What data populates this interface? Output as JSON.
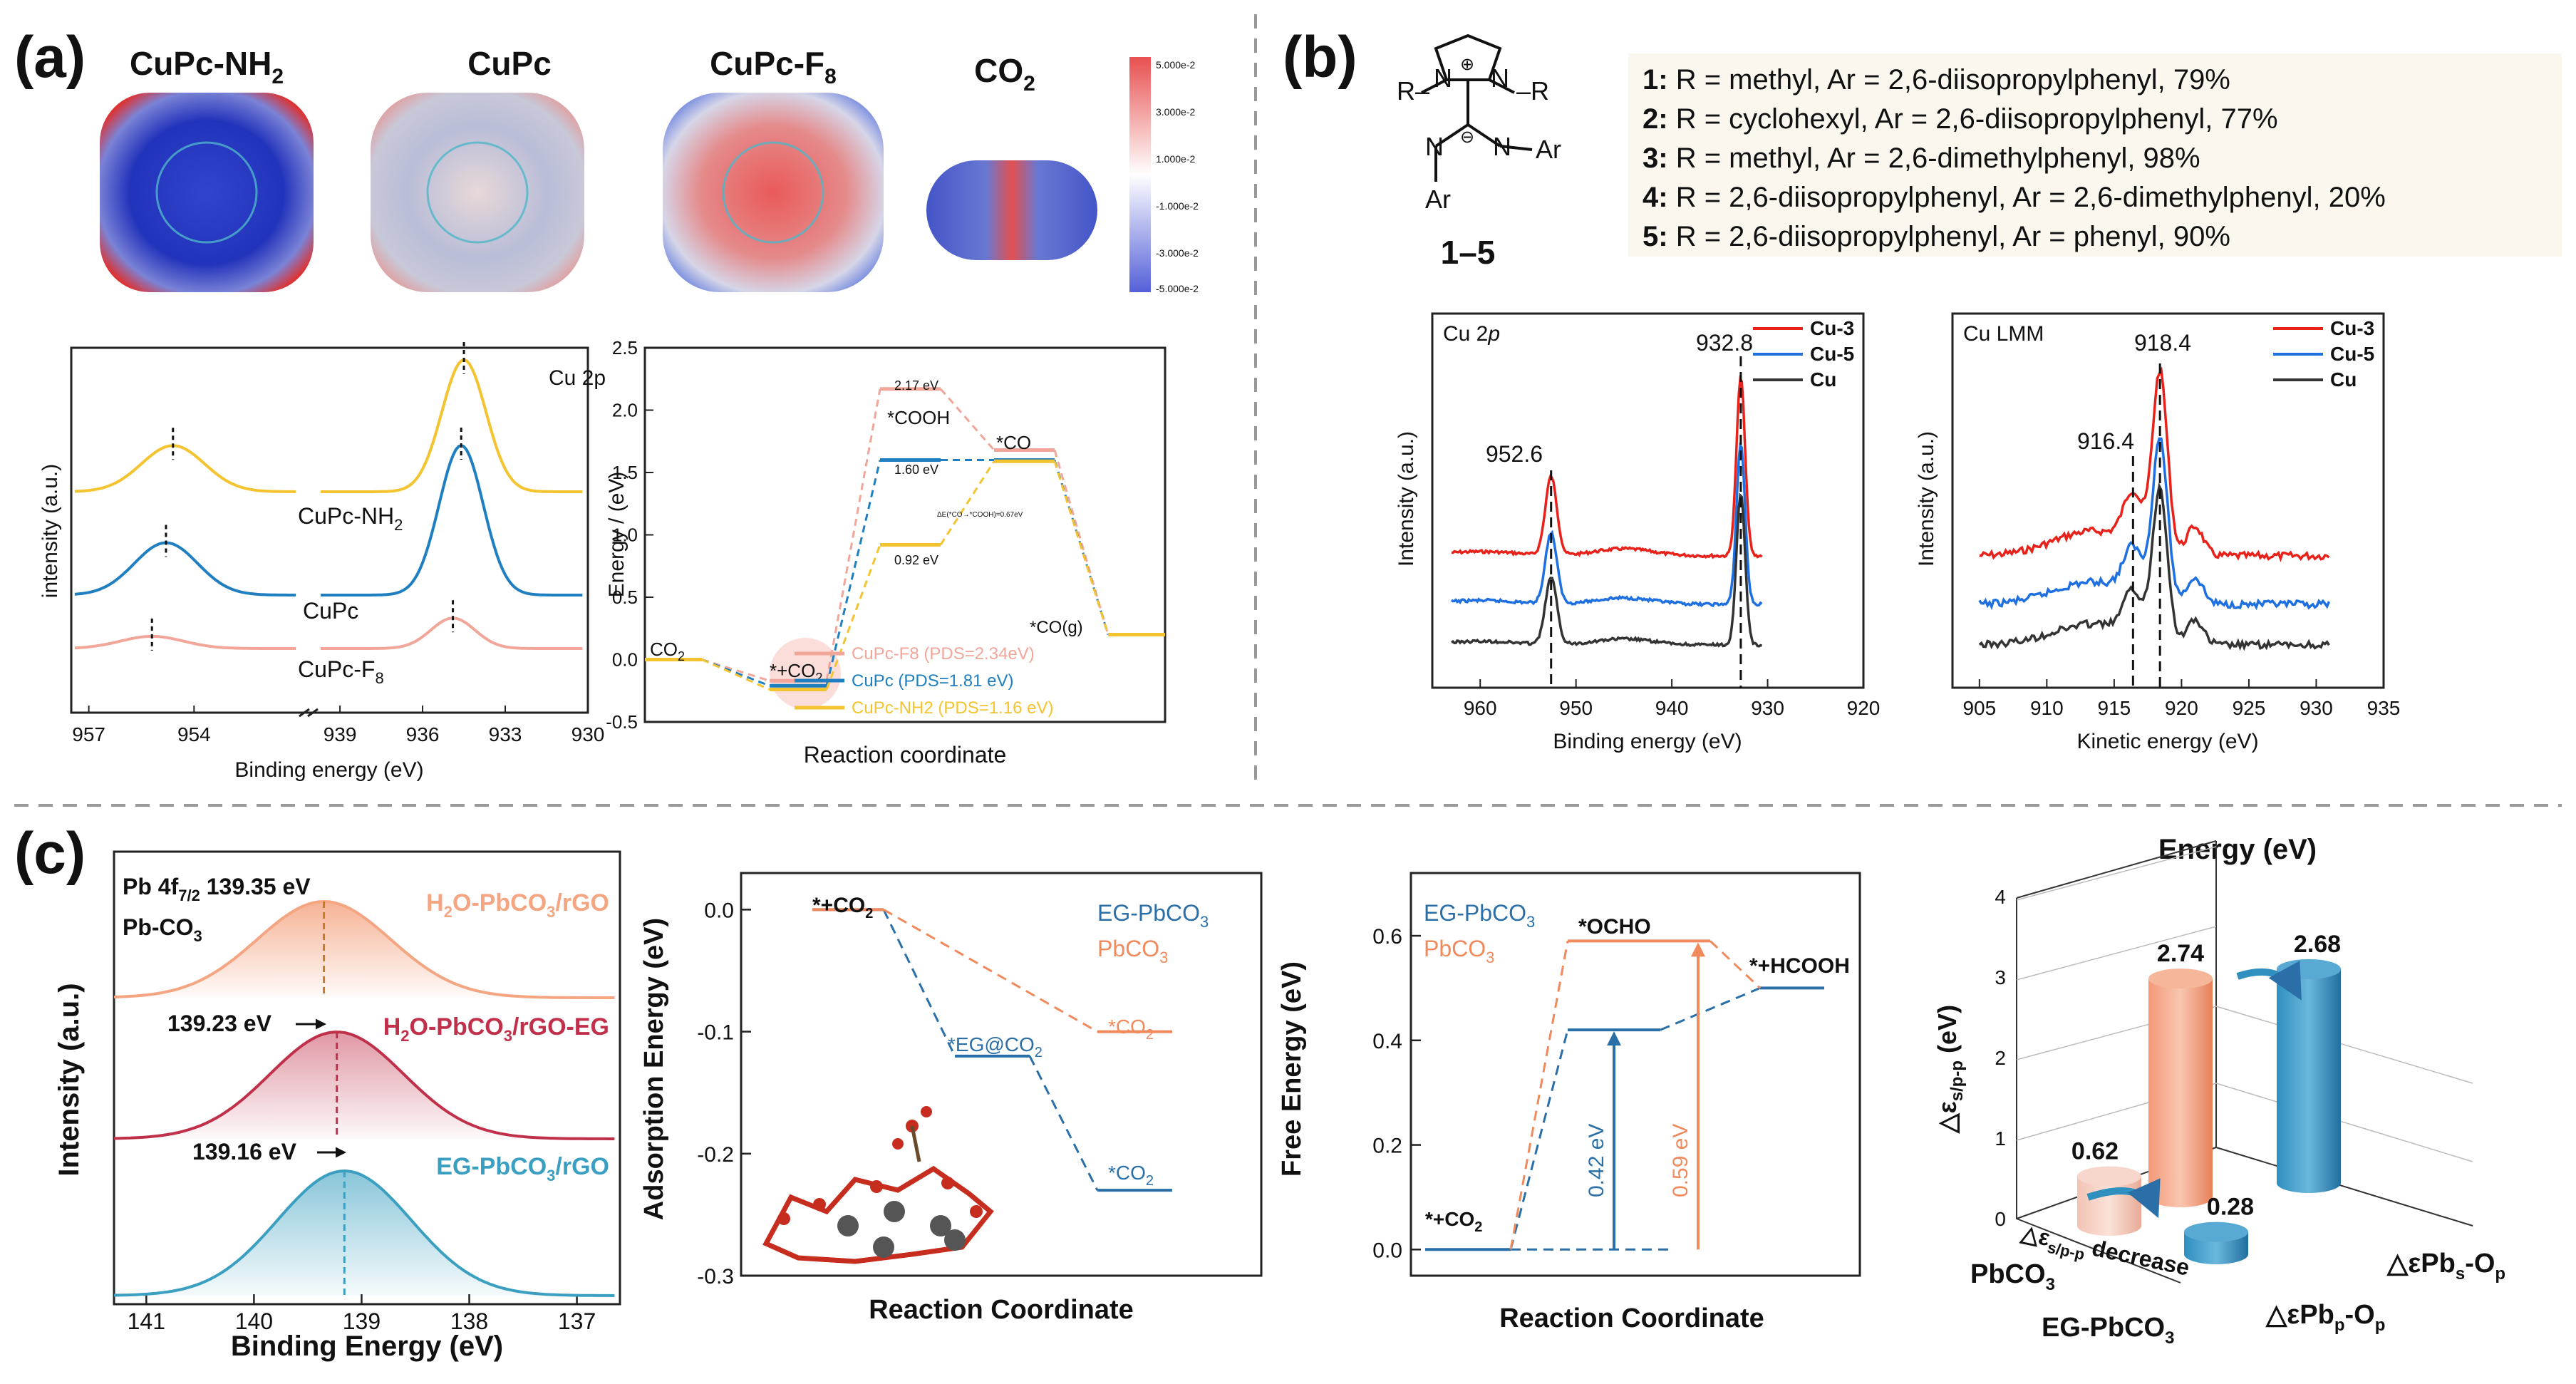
{
  "panels": {
    "a": {
      "label": "(a)",
      "molecules": [
        "CuPc-NH",
        "CuPc",
        "CuPc-F",
        "CO"
      ],
      "molecule_subs": [
        "2",
        "",
        "8",
        "2"
      ],
      "colorbar_ticks": [
        "5.000e-2",
        "3.000e-2",
        "1.000e-2",
        "-1.000e-2",
        "-3.000e-2",
        "-5.000e-2"
      ],
      "colors": {
        "nh2": "#f4c430",
        "cupc": "#1f7fc0",
        "f8": "#f2a69a"
      }
    },
    "b": {
      "label": "(b)",
      "structure_label": "1–5",
      "compounds": [
        {
          "num": "1:",
          "text": " R = methyl, Ar = 2,6-diisopropylphenyl, 79%"
        },
        {
          "num": "2:",
          "text": " R = cyclohexyl, Ar = 2,6-diisopropylphenyl, 77%"
        },
        {
          "num": "3:",
          "text": " R = methyl, Ar = 2,6-dimethylphenyl, 98%"
        },
        {
          "num": "4:",
          "text": " R = 2,6-diisopropylphenyl, Ar = 2,6-dimethylphenyl, 20%"
        },
        {
          "num": "5:",
          "text": " R = 2,6-diisopropylphenyl, Ar = phenyl, 90%"
        }
      ],
      "colors": {
        "cu3": "#e8221b",
        "cu5": "#1e6fe0",
        "cu": "#333333"
      }
    },
    "c": {
      "label": "(c)",
      "colors": {
        "h2o": "#f4a582",
        "eg_h2o": "#c0304a",
        "eg": "#3a9fc0",
        "orange": "#f08a5d",
        "blue": "#2a6fa8"
      }
    }
  },
  "chart_data": [
    {
      "id": "a-xps",
      "type": "line",
      "title": "Cu 2p",
      "xlabel": "Binding energy (eV)",
      "ylabel": "intensity (a.u.)",
      "xlim": [
        957,
        930
      ],
      "x_break": [
        951,
        939
      ],
      "x_ticks": [
        957,
        954,
        939,
        936,
        933,
        930
      ],
      "series": [
        {
          "name": "CuPc-NH2",
          "label": "CuPc-NH",
          "sub": "2",
          "peaks": [
            954.6,
            934.5
          ],
          "heights": [
            0.35,
            1.0
          ]
        },
        {
          "name": "CuPc",
          "label": "CuPc",
          "sub": "",
          "peaks": [
            954.8,
            934.6
          ],
          "heights": [
            0.35,
            1.0
          ]
        },
        {
          "name": "CuPc-F8",
          "label": "CuPc-F",
          "sub": "8",
          "peaks": [
            955.2,
            934.9
          ],
          "heights": [
            0.18,
            0.45
          ]
        }
      ]
    },
    {
      "id": "a-energy",
      "type": "line",
      "title": "",
      "xlabel": "Reaction coordinate",
      "ylabel": "Energy / (eV)",
      "ylim": [
        -0.5,
        2.5
      ],
      "y_ticks": [
        -0.5,
        0.0,
        0.5,
        1.0,
        1.5,
        2.0,
        2.5
      ],
      "states": [
        "CO2",
        "*+CO2",
        "*COOH",
        "*CO",
        "*CO(g)"
      ],
      "state_labels": {
        "co2": "CO",
        "co2_sub": "2",
        "ads": "*+CO",
        "ads_sub": "2",
        "cooh": "*COOH",
        "co": "*CO",
        "cog": "*CO(g)"
      },
      "annotations": [
        "2.17 eV",
        "1.60 eV",
        "0.92 eV",
        "ΔE(*CO→*COOH)=0.67eV"
      ],
      "series": [
        {
          "name": "CuPc-F8 (PDS=2.34eV)",
          "values": [
            0,
            -0.17,
            2.17,
            1.68,
            0.2
          ]
        },
        {
          "name": "CuPc (PDS=1.81 eV)",
          "values": [
            0,
            -0.21,
            1.6,
            1.6,
            0.2
          ]
        },
        {
          "name": "CuPc-NH2 (PDS=1.16 eV)",
          "values": [
            0,
            -0.24,
            0.92,
            1.59,
            0.2
          ]
        }
      ]
    },
    {
      "id": "b-cu2p",
      "type": "line",
      "title": "Cu 2p",
      "xlabel": "Binding energy (eV)",
      "ylabel": "Intensity (a.u.)",
      "xlim": [
        965,
        920
      ],
      "x_ticks": [
        960,
        950,
        940,
        930,
        920
      ],
      "peak_labels": [
        "952.6",
        "932.8"
      ],
      "series": [
        {
          "name": "Cu-3"
        },
        {
          "name": "Cu-5"
        },
        {
          "name": "Cu"
        }
      ]
    },
    {
      "id": "b-culmm",
      "type": "line",
      "title": "Cu LMM",
      "xlabel": "Kinetic energy (eV)",
      "ylabel": "Intensity (a.u.)",
      "xlim": [
        903,
        935
      ],
      "x_ticks": [
        905,
        910,
        915,
        920,
        925,
        930,
        935
      ],
      "peak_labels": [
        "916.4",
        "918.4"
      ],
      "series": [
        {
          "name": "Cu-3"
        },
        {
          "name": "Cu-5"
        },
        {
          "name": "Cu"
        }
      ]
    },
    {
      "id": "c-xps",
      "type": "area",
      "title": "",
      "xlabel": "Binding Energy (eV)",
      "ylabel": "Intensity (a.u.)",
      "xlim": [
        141.3,
        136.6
      ],
      "x_ticks": [
        141,
        140,
        139,
        138,
        137
      ],
      "peak_title": "Pb 4f",
      "peak_title_sub": "7/2",
      "peak_title_value": " 139.35 eV",
      "peak_sub": "Pb-CO",
      "series": [
        {
          "name": "H2O-PbCO3/rGO",
          "center": 139.35,
          "label": "139.35 eV"
        },
        {
          "name": "H2O-PbCO3/rGO-EG",
          "center": 139.23,
          "label": "139.23 eV"
        },
        {
          "name": "EG-PbCO3/rGO",
          "center": 139.16,
          "label": "139.16 eV"
        }
      ],
      "series_labels": [
        {
          "a": "H",
          "a_sub": "2",
          "b": "O-PbCO",
          "b_sub": "3",
          "c": "/rGO"
        },
        {
          "a": "H",
          "a_sub": "2",
          "b": "O-PbCO",
          "b_sub": "3",
          "c": "/rGO-EG"
        },
        {
          "a": "EG-PbCO",
          "a_sub": "3",
          "b": "/rGO",
          "b_sub": "",
          "c": ""
        }
      ]
    },
    {
      "id": "c-adsorption",
      "type": "line",
      "title": "",
      "xlabel": "Reaction Coordinate",
      "ylabel": "Adsorption Energy (eV)",
      "ylim": [
        -0.3,
        0.03
      ],
      "y_ticks": [
        0.0,
        -0.1,
        -0.2,
        -0.3
      ],
      "state_labels": {
        "start": "*+CO",
        "start_sub": "2",
        "eg": "*EG@CO",
        "eg_sub": "2",
        "co2": "*CO",
        "co2_sub": "2"
      },
      "series": [
        {
          "name": "EG-PbCO3",
          "label": "EG-PbCO",
          "sub": "3",
          "values": [
            0.0,
            -0.12,
            -0.23
          ]
        },
        {
          "name": "PbCO3",
          "label": "PbCO",
          "sub": "3",
          "values": [
            0.0,
            -0.1
          ]
        }
      ]
    },
    {
      "id": "c-free-energy",
      "type": "line",
      "title": "",
      "xlabel": "Reaction Coordinate",
      "ylabel": "Free Energy (eV)",
      "ylim": [
        -0.05,
        0.72
      ],
      "y_ticks": [
        0.0,
        0.2,
        0.4,
        0.6
      ],
      "state_labels": {
        "start": "*+CO",
        "start_sub": "2",
        "ocho": "*OCHO",
        "hcooh": "*+HCOOH"
      },
      "annotations": [
        "0.42 eV",
        "0.59 eV"
      ],
      "series": [
        {
          "name": "EG-PbCO3",
          "label": "EG-PbCO",
          "sub": "3",
          "values": [
            0.0,
            0.42,
            0.5
          ]
        },
        {
          "name": "PbCO3",
          "label": "PbCO",
          "sub": "3",
          "values": [
            0.0,
            0.59,
            0.5
          ]
        }
      ]
    },
    {
      "id": "c-3d-bar",
      "type": "bar",
      "title": "Energy (eV)",
      "zlabel": "△εs/p-p (eV)",
      "z_ticks": [
        0,
        1,
        2,
        3,
        4
      ],
      "categories": [
        "PbCO3",
        "EG-PbCO3"
      ],
      "category_labels": [
        {
          "a": "PbCO",
          "sub": "3"
        },
        {
          "a": "EG-PbCO",
          "sub": "3"
        }
      ],
      "depth_labels": [
        "△εPbs-Op",
        "△εPbp-Op"
      ],
      "depth_parts": [
        {
          "a": "△εPb",
          "s1": "s",
          "b": "-O",
          "s2": "p"
        },
        {
          "a": "△εPb",
          "s1": "p",
          "b": "-O",
          "s2": "p"
        }
      ],
      "series": [
        {
          "name": "△εPbs-Op",
          "values": [
            2.74,
            2.68
          ]
        },
        {
          "name": "△εPbp-Op",
          "values": [
            0.62,
            0.28
          ]
        }
      ],
      "annotation": "△εs/p-p decrease",
      "annotation_parts": {
        "a": "△ε",
        "sub": "s/p-p",
        "b": " decrease"
      },
      "zlabel_parts": {
        "a": "△ε",
        "sub": "s/p-p",
        "b": " (eV)"
      }
    }
  ]
}
